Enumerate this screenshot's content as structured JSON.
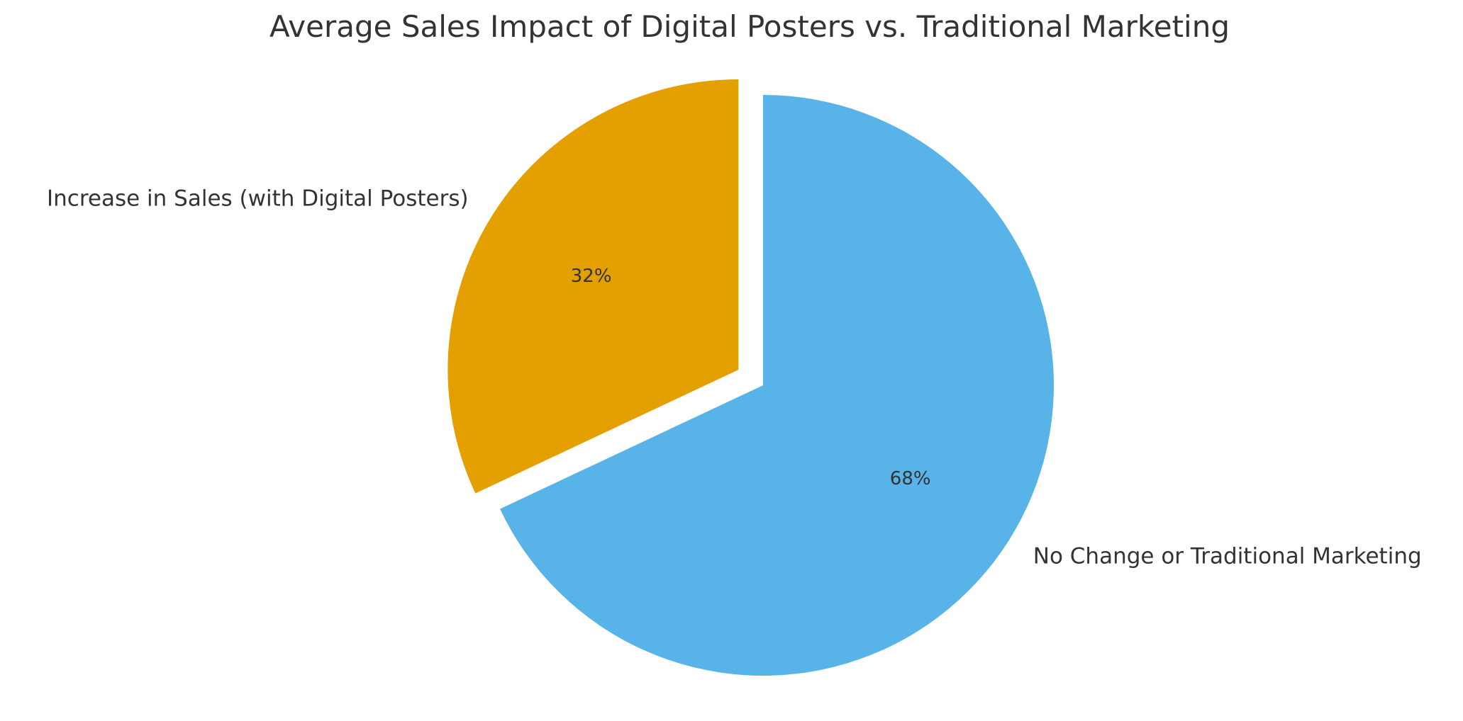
{
  "chart_data": {
    "type": "pie",
    "title": "Average Sales Impact of Digital Posters vs. Traditional Marketing",
    "slices": [
      {
        "label": "Increase in Sales (with Digital Posters)",
        "value": 32,
        "pct_label": "32%",
        "color": "#E49F00",
        "exploded": true
      },
      {
        "label": "No Change or Traditional Marketing",
        "value": 68,
        "pct_label": "68%",
        "color": "#58B3E8",
        "exploded": false
      }
    ],
    "start_angle_deg": 90,
    "direction": "counterclockwise",
    "legend": "none"
  }
}
